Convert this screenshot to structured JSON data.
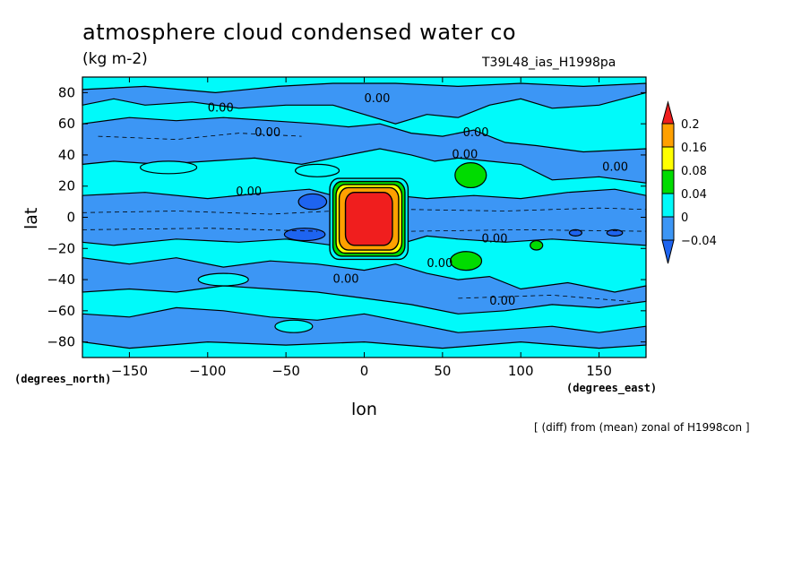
{
  "chart_data": {
    "type": "heatmap",
    "title": "atmosphere cloud condensed water co",
    "units": "(kg m-2)",
    "run_label": "T39L48_ias_H1998pa",
    "footer": "[ (diff) from (mean) zonal of H1998con ]",
    "xlabel": "lon",
    "ylabel": "lat",
    "x_unit_label": "(degrees_east)",
    "y_unit_label": "(degrees_north)",
    "xlim": [
      -180,
      180
    ],
    "ylim": [
      -90,
      90
    ],
    "x_ticks": [
      -150,
      -100,
      -50,
      0,
      50,
      100,
      150
    ],
    "y_ticks": [
      -80,
      -60,
      -40,
      -20,
      0,
      20,
      40,
      60,
      80
    ],
    "colorbar": {
      "levels": [
        -0.04,
        0,
        0.04,
        0.08,
        0.16,
        0.2
      ],
      "level_labels": [
        "-0.04",
        "0",
        "0.04",
        "0.08",
        "0.16",
        "0.2"
      ],
      "colors": [
        "#1e64f0",
        "#3c96f5",
        "#00fafa",
        "#00dc00",
        "#ffff00",
        "#ffa000",
        "#f01e1e"
      ]
    },
    "contour_labels": [
      "0.00",
      "0.00",
      "0.00",
      "0.00",
      "0.00",
      "0.00",
      "0.00",
      "0.00",
      "0.00",
      "0.00",
      "0.00"
    ],
    "regions": [
      {
        "name": "positive anomaly",
        "lon": 3,
        "lat": 0,
        "value": 0.2
      },
      {
        "name": "positive anomaly",
        "lon": 68,
        "lat": 27,
        "value": 0.06
      },
      {
        "name": "positive anomaly",
        "lon": 65,
        "lat": -28,
        "value": 0.06
      },
      {
        "name": "positive anomaly",
        "lon": 110,
        "lat": -18,
        "value": 0.05
      },
      {
        "name": "negative anomaly",
        "lon": -40,
        "lat": 10,
        "value": -0.05
      },
      {
        "name": "negative anomaly",
        "lon": -38,
        "lat": -11,
        "value": -0.05
      }
    ]
  }
}
